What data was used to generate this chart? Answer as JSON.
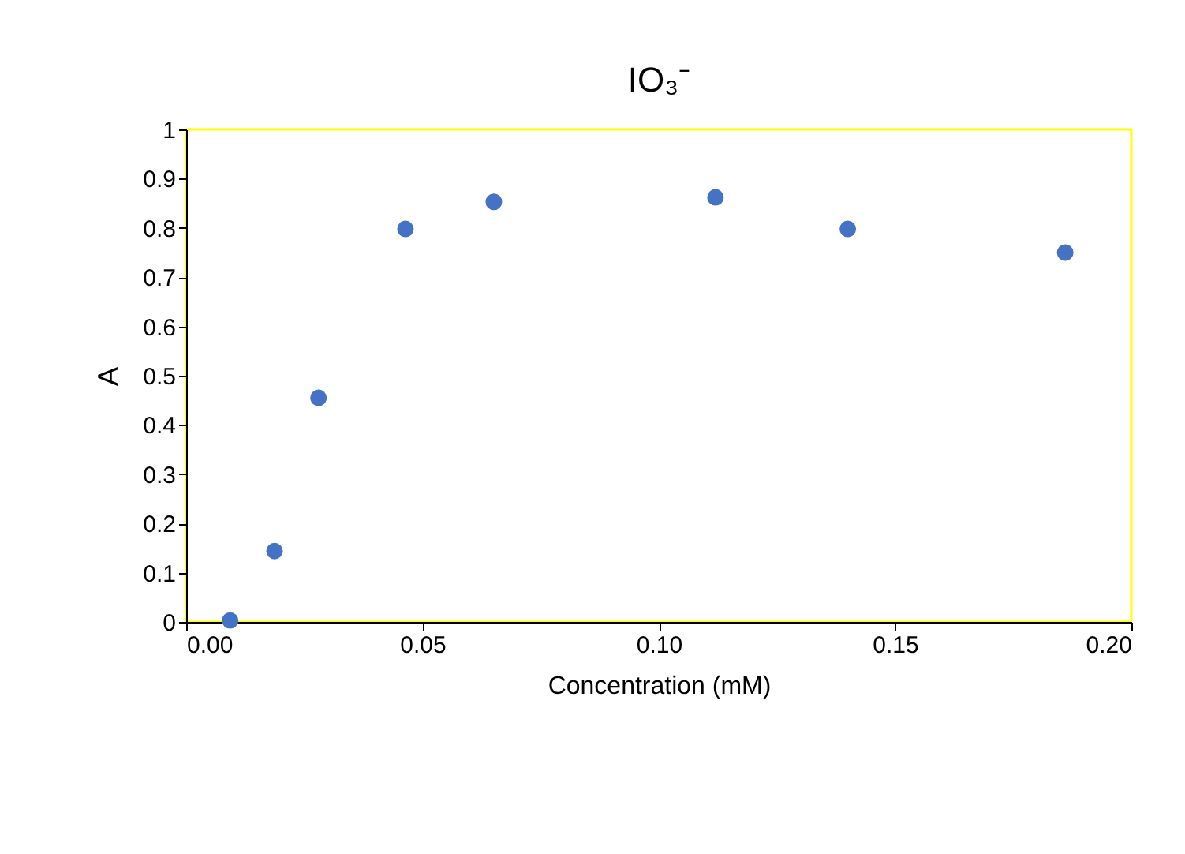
{
  "chart_data": {
    "type": "scatter",
    "title": "IO₃⁻",
    "xlabel": "Concentration (mM)",
    "ylabel": "A",
    "x": [
      0.0093,
      0.0187,
      0.028,
      0.0464,
      0.0651,
      0.112,
      0.14,
      0.186
    ],
    "series": [
      {
        "color": "#4472c4",
        "values": [
          0.003,
          0.144,
          0.455,
          0.798,
          0.853,
          0.862,
          0.798,
          0.75
        ]
      }
    ],
    "xlim": [
      0,
      0.2
    ],
    "xticks": [
      {
        "value": 0,
        "label": "0.00"
      },
      {
        "value": 0.05,
        "label": "0.05"
      },
      {
        "value": 0.1,
        "label": "0.10"
      },
      {
        "value": 0.15,
        "label": "0.15"
      },
      {
        "value": 0.2,
        "label": "0.20"
      }
    ],
    "ylim": [
      0,
      1
    ],
    "yticks": [
      0,
      0.1,
      0.2,
      0.3,
      0.4,
      0.5,
      0.6,
      0.7,
      0.8,
      0.9,
      1
    ],
    "grid": false,
    "marker": "circle",
    "legend": false
  }
}
